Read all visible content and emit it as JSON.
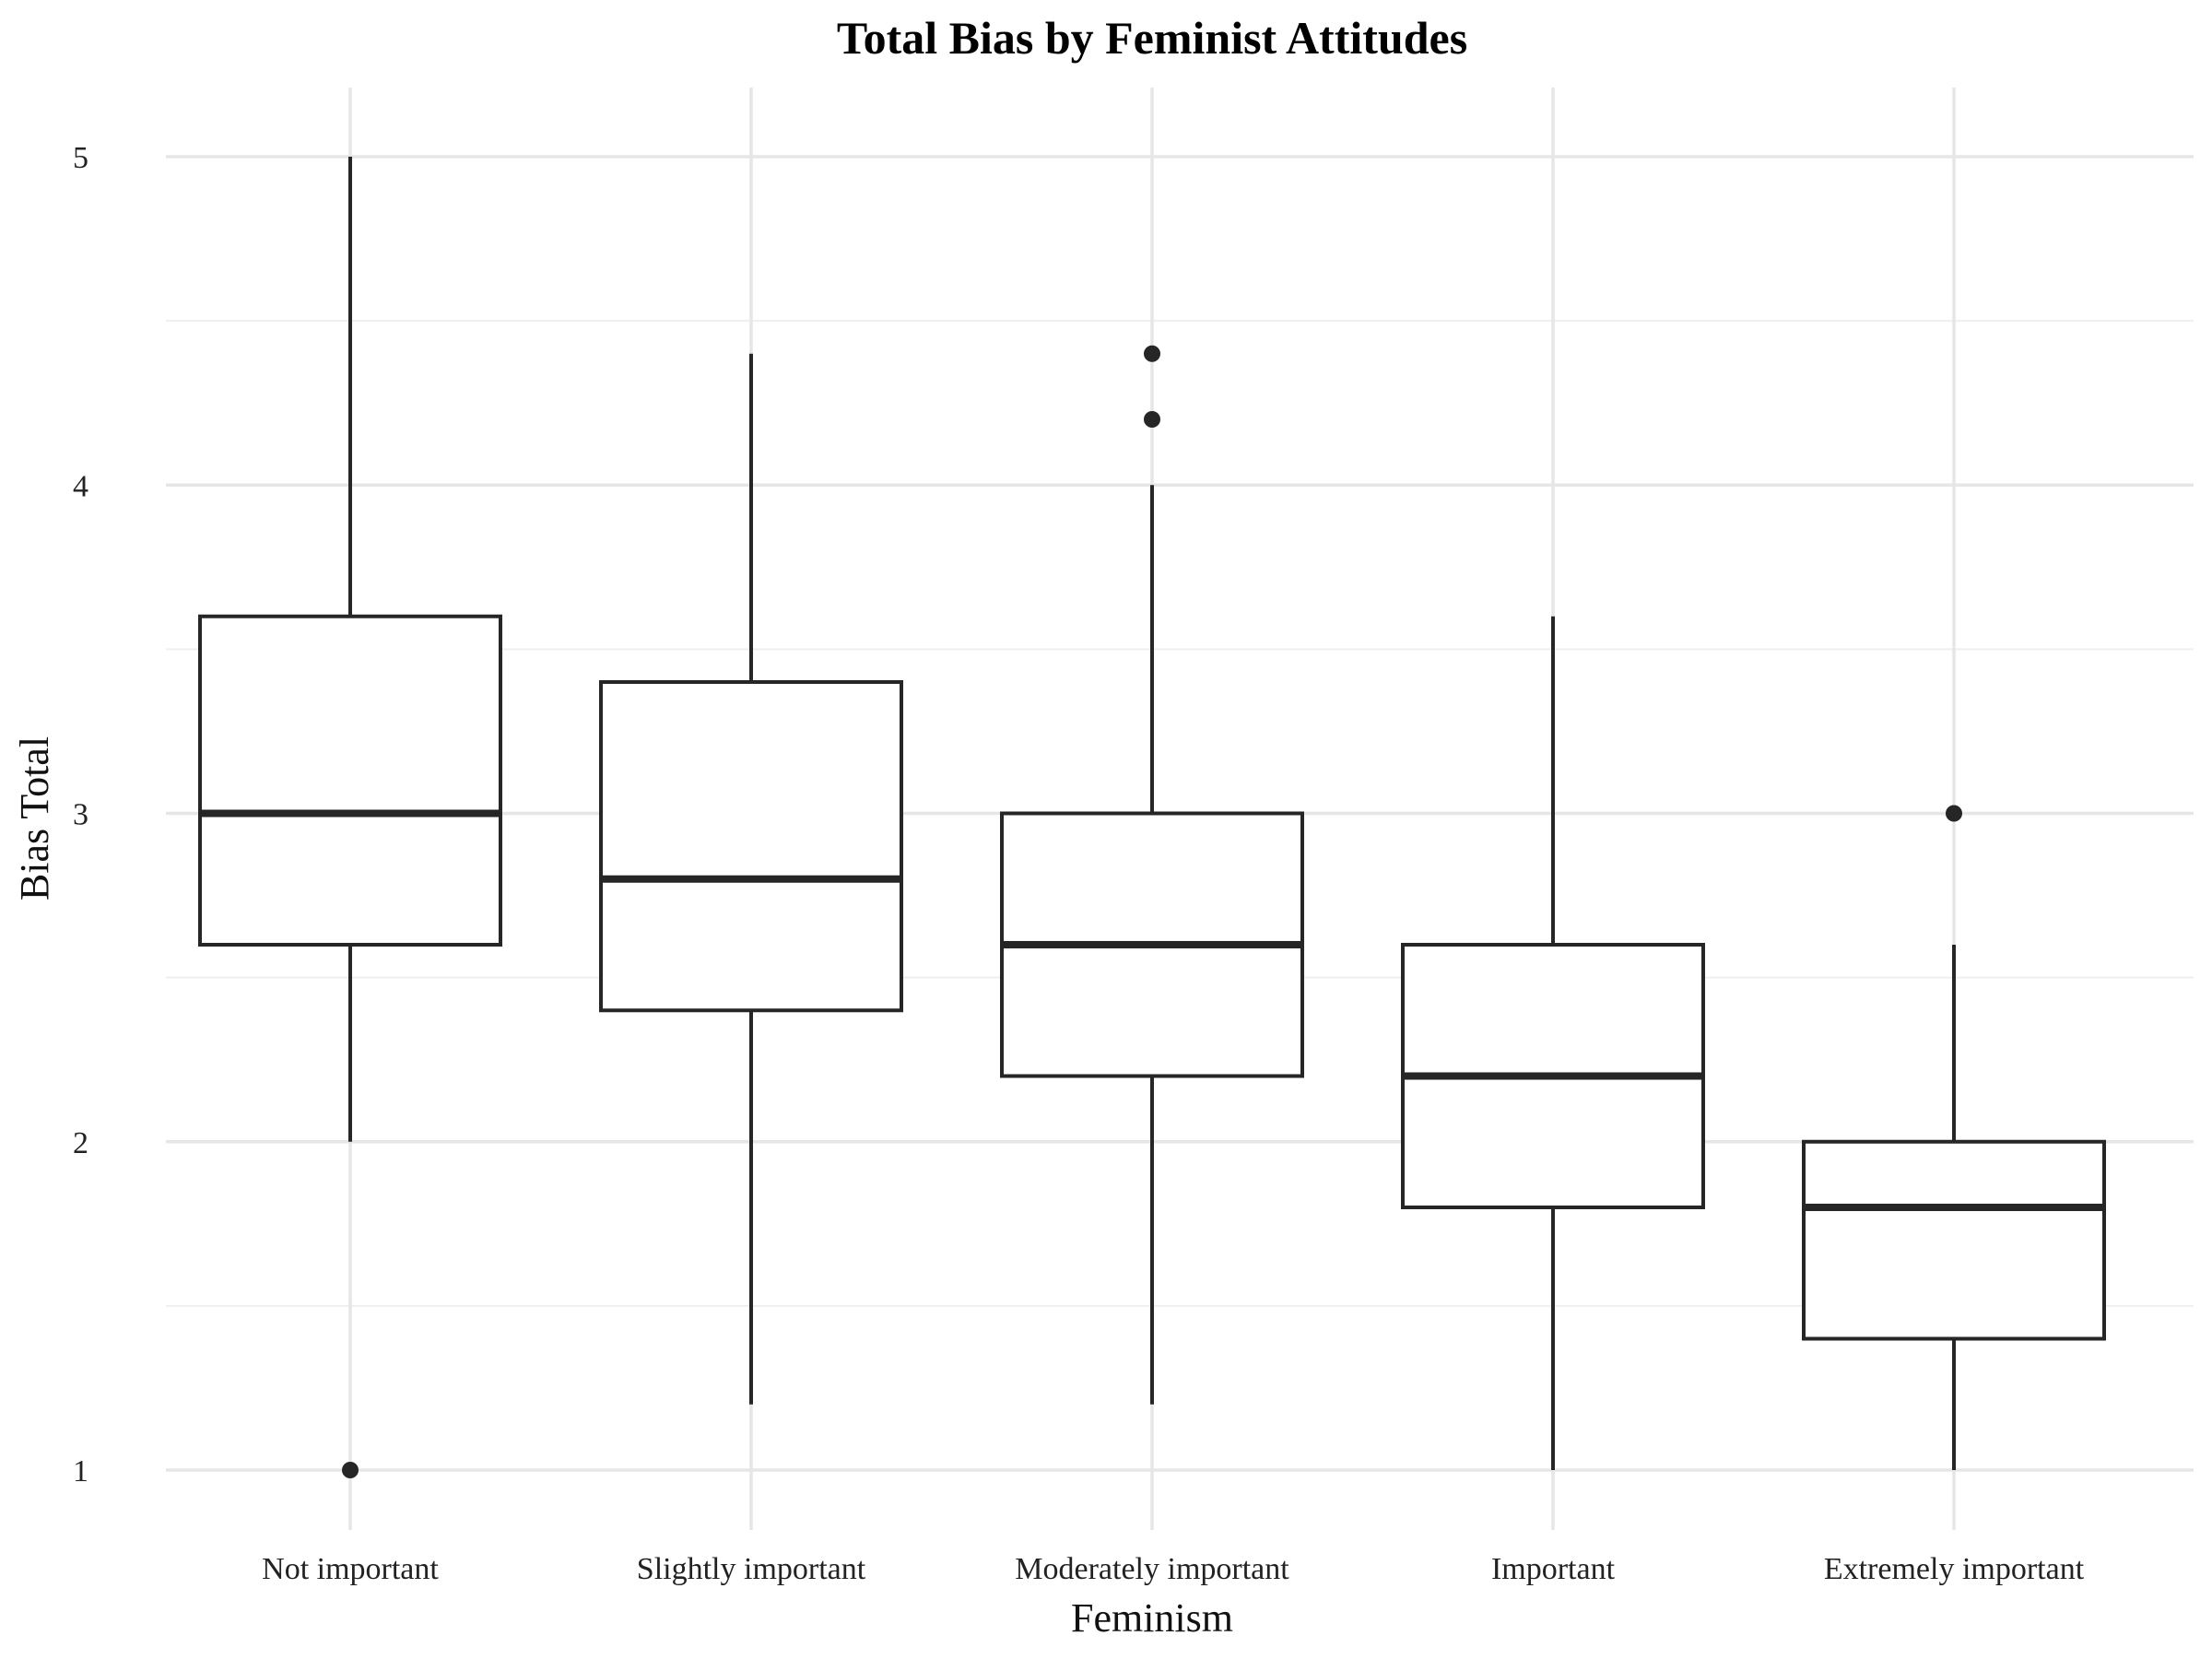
{
  "chart_data": {
    "type": "box",
    "title": "Total Bias by Feminist Attitudes",
    "xlabel": "Feminism",
    "ylabel": "Bias Total",
    "ylim": [
      0.8,
      5.2
    ],
    "yticks": [
      1,
      2,
      3,
      4,
      5
    ],
    "grid": true,
    "categories": [
      "Not important",
      "Slightly important",
      "Moderately important",
      "Important",
      "Extremely important"
    ],
    "boxes": [
      {
        "category": "Not important",
        "whisker_low": 2.0,
        "q1": 2.6,
        "median": 3.0,
        "q3": 3.6,
        "whisker_high": 5.0,
        "outliers": [
          1.0
        ]
      },
      {
        "category": "Slightly important",
        "whisker_low": 1.2,
        "q1": 2.4,
        "median": 2.8,
        "q3": 3.4,
        "whisker_high": 4.4,
        "outliers": []
      },
      {
        "category": "Moderately important",
        "whisker_low": 1.2,
        "q1": 2.2,
        "median": 2.6,
        "q3": 3.0,
        "whisker_high": 4.0,
        "outliers": [
          4.2,
          4.4
        ]
      },
      {
        "category": "Important",
        "whisker_low": 1.0,
        "q1": 1.8,
        "median": 2.2,
        "q3": 2.6,
        "whisker_high": 3.6,
        "outliers": []
      },
      {
        "category": "Extremely important",
        "whisker_low": 1.0,
        "q1": 1.4,
        "median": 1.8,
        "q3": 2.0,
        "whisker_high": 2.6,
        "outliers": [
          3.0
        ]
      }
    ],
    "colors": {
      "box_line": "#262626",
      "box_fill": "#ffffff",
      "grid": "#e6e6e6"
    }
  }
}
